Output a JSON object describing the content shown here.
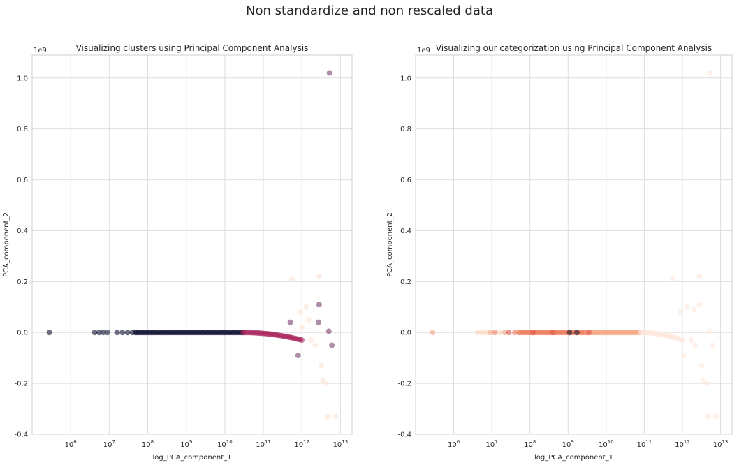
{
  "figure": {
    "suptitle": "Non standardize and non rescaled data"
  },
  "chart_data": [
    {
      "type": "scatter",
      "title": "Visualizing clusters using Principal Component Analysis",
      "xlabel": "log_PCA_component_1",
      "ylabel": "PCA_component_2",
      "y_offset_label": "1e9",
      "xscale": "log",
      "xlim": [
        100000,
        20000000000000
      ],
      "ylim": [
        -0.4,
        1.09
      ],
      "y_units": "1e9",
      "grid": true,
      "xticks": [
        {
          "value": 1000000,
          "exp": "6"
        },
        {
          "value": 10000000,
          "exp": "7"
        },
        {
          "value": 100000000,
          "exp": "8"
        },
        {
          "value": 1000000000,
          "exp": "9"
        },
        {
          "value": 10000000000,
          "exp": "10"
        },
        {
          "value": 100000000000,
          "exp": "11"
        },
        {
          "value": 1000000000000,
          "exp": "12"
        },
        {
          "value": 10000000000000,
          "exp": "13"
        }
      ],
      "yticks": [
        "-0.4",
        "-0.2",
        "0.0",
        "0.2",
        "0.4",
        "0.6",
        "0.8",
        "1.0"
      ],
      "colors": {
        "cluster_dark": "#0d1030",
        "cluster_mid": "#a8215a",
        "cluster_light": "#fce4d6",
        "cluster_purple": "#7a3f6e"
      },
      "points": [
        {
          "x": 280000,
          "y": 0.0,
          "c": "cluster_dark"
        },
        {
          "x": 4200000,
          "y": 0.0,
          "c": "cluster_dark"
        },
        {
          "x": 5500000,
          "y": 0.0,
          "c": "cluster_dark"
        },
        {
          "x": 7000000,
          "y": 0.0,
          "c": "cluster_dark"
        },
        {
          "x": 9000000,
          "y": 0.0,
          "c": "cluster_dark"
        },
        {
          "x": 16000000,
          "y": 0.0,
          "c": "cluster_dark"
        },
        {
          "x": 22000000,
          "y": 0.0,
          "c": "cluster_dark"
        },
        {
          "x": 30000000,
          "y": 0.0,
          "c": "cluster_dark"
        },
        {
          "x": 40000000,
          "y": 0.0,
          "c": "cluster_dark"
        },
        {
          "x": 48000000,
          "y": 0.0,
          "c": "cluster_dark"
        },
        {
          "x": 500000000000,
          "y": 0.04,
          "c": "cluster_purple"
        },
        {
          "x": 800000000000,
          "y": -0.09,
          "c": "cluster_purple"
        },
        {
          "x": 2800000000000,
          "y": 0.11,
          "c": "cluster_purple"
        },
        {
          "x": 2700000000000,
          "y": 0.04,
          "c": "cluster_purple"
        },
        {
          "x": 5000000000000,
          "y": 0.005,
          "c": "cluster_purple"
        },
        {
          "x": 6000000000000,
          "y": -0.05,
          "c": "cluster_purple"
        },
        {
          "x": 5200000000000,
          "y": 1.02,
          "c": "cluster_purple"
        },
        {
          "x": 550000000000,
          "y": 0.21,
          "c": "cluster_light"
        },
        {
          "x": 2800000000000,
          "y": 0.22,
          "c": "cluster_light"
        },
        {
          "x": 900000000000,
          "y": 0.08,
          "c": "cluster_light"
        },
        {
          "x": 1300000000000,
          "y": 0.1,
          "c": "cluster_light"
        },
        {
          "x": 1700000000000,
          "y": -0.03,
          "c": "cluster_light"
        },
        {
          "x": 2200000000000,
          "y": -0.05,
          "c": "cluster_light"
        },
        {
          "x": 3200000000000,
          "y": -0.13,
          "c": "cluster_light"
        },
        {
          "x": 3500000000000,
          "y": -0.19,
          "c": "cluster_light"
        },
        {
          "x": 4400000000000,
          "y": -0.2,
          "c": "cluster_light"
        },
        {
          "x": 4600000000000,
          "y": -0.33,
          "c": "cluster_light"
        },
        {
          "x": 7500000000000,
          "y": -0.33,
          "c": "cluster_light"
        },
        {
          "x": 1000000000000,
          "y": 0.02,
          "c": "cluster_light"
        },
        {
          "x": 1500000000000,
          "y": 0.05,
          "c": "cluster_light"
        }
      ],
      "bands": [
        {
          "from": 50000000,
          "to": 30000000000,
          "y": 0.0,
          "c": "cluster_dark",
          "curve": 0
        },
        {
          "from": 30000000000,
          "to": 1000000000000,
          "y": 0.0,
          "c": "cluster_mid",
          "curve": -0.03
        }
      ]
    },
    {
      "type": "scatter",
      "title": "Visualizing our categorization using Principal Component Analysis",
      "xlabel": "log_PCA_component_1",
      "ylabel": "PCA_component_2",
      "y_offset_label": "1e9",
      "xscale": "log",
      "xlim": [
        100000,
        20000000000000
      ],
      "ylim": [
        -0.4,
        1.09
      ],
      "y_units": "1e9",
      "grid": true,
      "xticks": [
        {
          "value": 1000000,
          "exp": "6"
        },
        {
          "value": 10000000,
          "exp": "7"
        },
        {
          "value": 100000000,
          "exp": "8"
        },
        {
          "value": 1000000000,
          "exp": "9"
        },
        {
          "value": 10000000000,
          "exp": "10"
        },
        {
          "value": 100000000000,
          "exp": "11"
        },
        {
          "value": 1000000000000,
          "exp": "12"
        },
        {
          "value": 10000000000000,
          "exp": "13"
        }
      ],
      "yticks": [
        "-0.4",
        "-0.2",
        "0.0",
        "0.2",
        "0.4",
        "0.6",
        "0.8",
        "1.0"
      ],
      "colors": {
        "cat_light": "#fbd3bd",
        "cat_peach": "#f4a582",
        "cat_orange": "#ef7b5a",
        "cat_red": "#e2574c",
        "cat_dark": "#1f1a2e",
        "cat_pale": "#fde8dc"
      },
      "points": [
        {
          "x": 280000,
          "y": 0.0,
          "c": "cat_peach"
        },
        {
          "x": 4200000,
          "y": 0.0,
          "c": "cat_light"
        },
        {
          "x": 5500000,
          "y": 0.0,
          "c": "cat_light"
        },
        {
          "x": 7000000,
          "y": 0.0,
          "c": "cat_light"
        },
        {
          "x": 9000000,
          "y": 0.0,
          "c": "cat_peach"
        },
        {
          "x": 12000000,
          "y": 0.0,
          "c": "cat_orange"
        },
        {
          "x": 16000000,
          "y": 0.0,
          "c": "cat_light"
        },
        {
          "x": 22000000,
          "y": 0.0,
          "c": "cat_peach"
        },
        {
          "x": 28000000,
          "y": 0.0,
          "c": "cat_red"
        },
        {
          "x": 40000000,
          "y": 0.0,
          "c": "cat_orange"
        },
        {
          "x": 120000000,
          "y": 0.0,
          "c": "cat_red"
        },
        {
          "x": 400000000,
          "y": 0.0,
          "c": "cat_red"
        },
        {
          "x": 1100000000,
          "y": 0.0,
          "c": "cat_dark"
        },
        {
          "x": 1700000000,
          "y": 0.0,
          "c": "cat_dark"
        },
        {
          "x": 3500000000,
          "y": 0.0,
          "c": "cat_red"
        },
        {
          "x": 550000000000,
          "y": 0.21,
          "c": "cat_pale"
        },
        {
          "x": 2800000000000,
          "y": 0.22,
          "c": "cat_pale"
        },
        {
          "x": 900000000000,
          "y": 0.08,
          "c": "cat_pale"
        },
        {
          "x": 1300000000000,
          "y": 0.1,
          "c": "cat_pale"
        },
        {
          "x": 2800000000000,
          "y": 0.11,
          "c": "cat_pale"
        },
        {
          "x": 2000000000000,
          "y": 0.09,
          "c": "cat_pale"
        },
        {
          "x": 1700000000000,
          "y": -0.03,
          "c": "cat_pale"
        },
        {
          "x": 2200000000000,
          "y": -0.05,
          "c": "cat_pale"
        },
        {
          "x": 1100000000000,
          "y": -0.09,
          "c": "cat_pale"
        },
        {
          "x": 3200000000000,
          "y": -0.13,
          "c": "cat_pale"
        },
        {
          "x": 3500000000000,
          "y": -0.19,
          "c": "cat_pale"
        },
        {
          "x": 4400000000000,
          "y": -0.2,
          "c": "cat_pale"
        },
        {
          "x": 4600000000000,
          "y": -0.33,
          "c": "cat_pale"
        },
        {
          "x": 7500000000000,
          "y": -0.33,
          "c": "cat_pale"
        },
        {
          "x": 5200000000000,
          "y": 1.02,
          "c": "cat_pale"
        },
        {
          "x": 5000000000000,
          "y": 0.005,
          "c": "cat_pale"
        },
        {
          "x": 6000000000000,
          "y": -0.05,
          "c": "cat_pale"
        }
      ],
      "bands": [
        {
          "from": 50000000,
          "to": 3000000000,
          "y": 0.0,
          "c": "cat_orange",
          "curve": 0
        },
        {
          "from": 3000000000,
          "to": 80000000000,
          "y": 0.0,
          "c": "cat_peach",
          "curve": 0
        },
        {
          "from": 80000000000,
          "to": 1000000000000,
          "y": 0.0,
          "c": "cat_pale",
          "curve": -0.03
        }
      ]
    }
  ]
}
